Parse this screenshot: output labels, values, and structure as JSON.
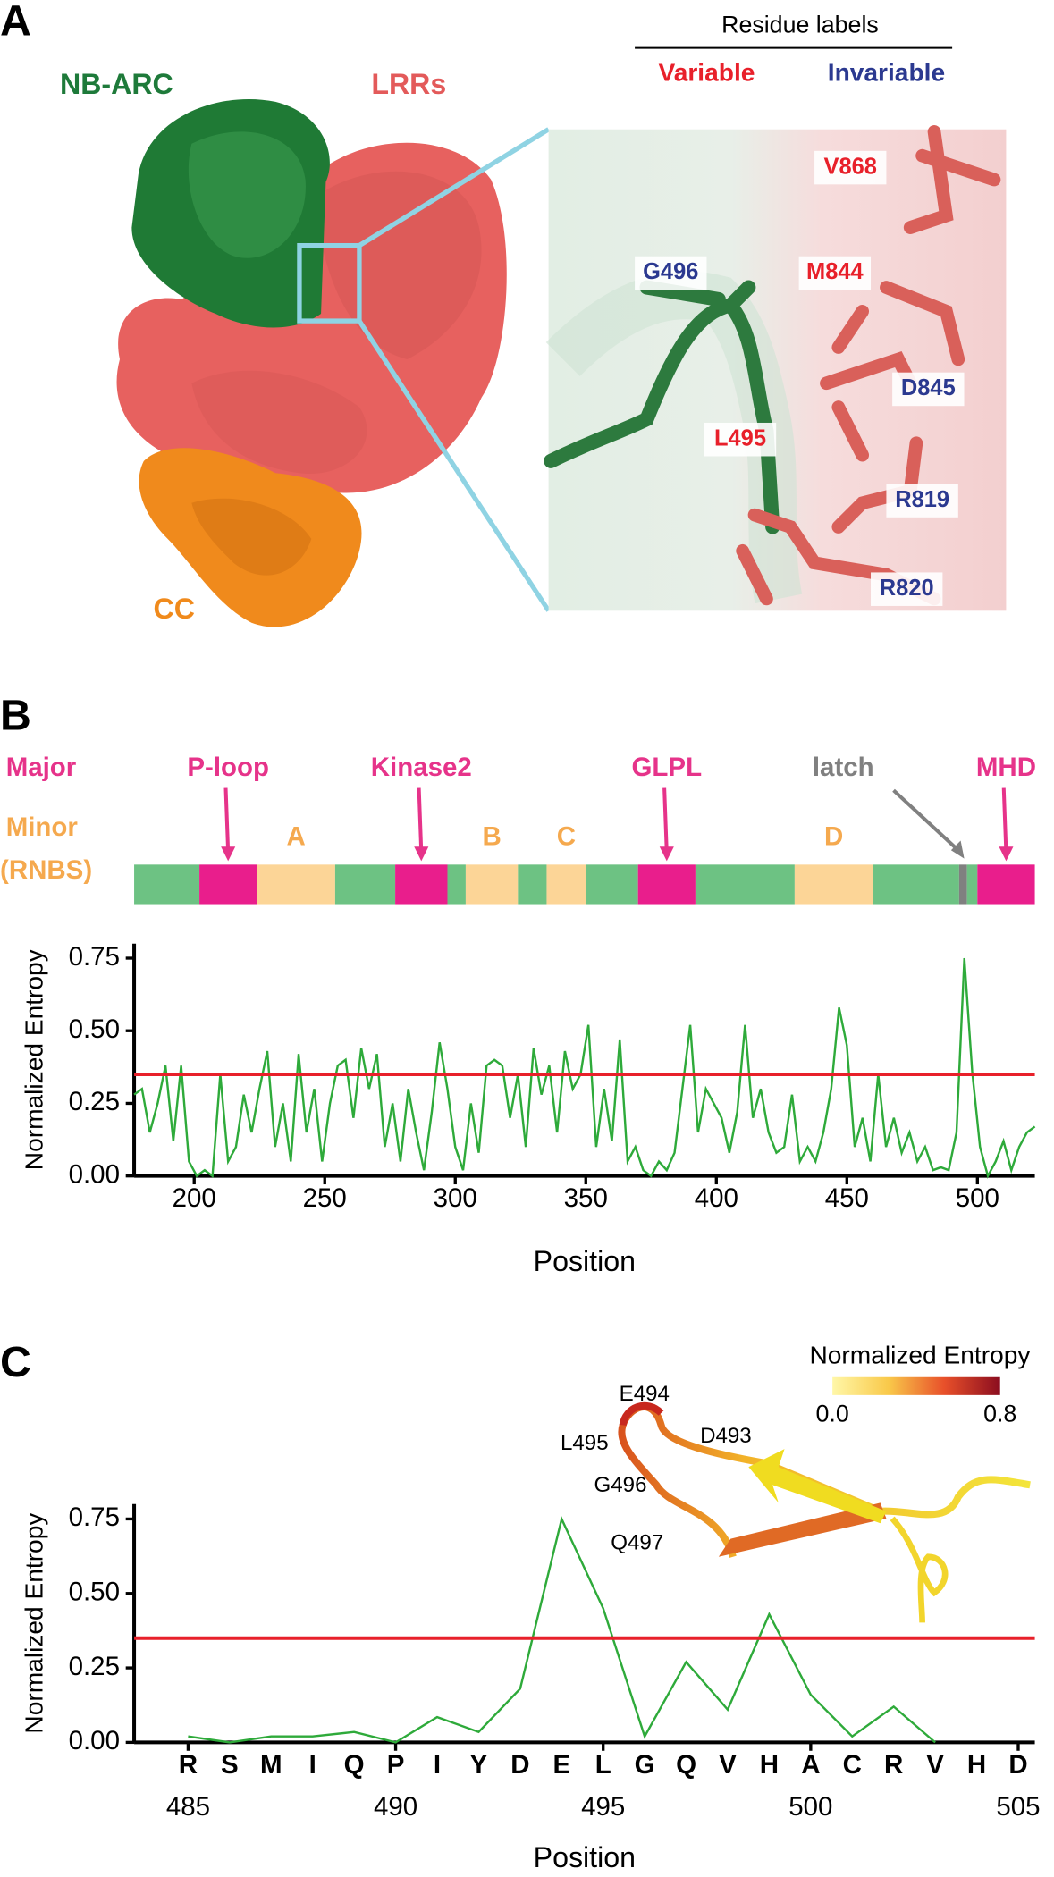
{
  "panels": {
    "a": {
      "letter": "A",
      "nb_arc": "NB-ARC",
      "lrrs": "LRRs",
      "cc": "CC",
      "residue_labels_title": "Residue labels",
      "variable": "Variable",
      "invariable": "Invariable",
      "variable_color": "#e8202a",
      "invariable_color": "#2b3990",
      "variable_residues": [
        "V868",
        "M844",
        "L495"
      ],
      "invariable_residues": [
        "G496",
        "D845",
        "R819",
        "R820"
      ]
    },
    "b": {
      "letter": "B",
      "major": "Major",
      "minor": "Minor",
      "minor_note": "(RNBS)"
    },
    "c": {
      "letter": "C",
      "inset_labels": [
        "E494",
        "L495",
        "D493",
        "G496",
        "Q497"
      ],
      "colorbar": {
        "title": "Normalized Entropy",
        "ticks": [
          {
            "value": 0,
            "label": "0.0"
          },
          {
            "value": 0.8,
            "label": "0.8"
          }
        ],
        "colors": [
          "#fff7a8",
          "#f9c94a",
          "#e8502a",
          "#8b0d1f"
        ]
      }
    }
  },
  "chart_data": [
    {
      "type": "line",
      "x_label": "Position",
      "y_label": "Normalized Entropy",
      "color": "#2eaa3a",
      "threshold": 0.35,
      "threshold_color": "#e8202a",
      "xlim": [
        177,
        522
      ],
      "ylim": [
        0,
        0.8
      ],
      "xticks": [
        200,
        250,
        300,
        350,
        400,
        450,
        500
      ],
      "yticks": [
        {
          "value": 0,
          "label": "0.00"
        },
        {
          "value": 0.25,
          "label": "0.25"
        },
        {
          "value": 0.5,
          "label": "0.50"
        },
        {
          "value": 0.75,
          "label": "0.75"
        }
      ],
      "domains": [
        {
          "start": 177,
          "end": 202,
          "color": "#6dc283"
        },
        {
          "start": 202,
          "end": 224,
          "color": "#e91e8c",
          "label": "P-loop",
          "label_color": "#e6338a",
          "arrow": "down"
        },
        {
          "start": 224,
          "end": 254,
          "color": "#fcd597",
          "label": "A",
          "label_color": "#f5a94e"
        },
        {
          "start": 254,
          "end": 277,
          "color": "#6dc283"
        },
        {
          "start": 277,
          "end": 297,
          "color": "#e91e8c",
          "label": "Kinase2",
          "label_color": "#e6338a",
          "arrow": "down"
        },
        {
          "start": 297,
          "end": 304,
          "color": "#6dc283"
        },
        {
          "start": 304,
          "end": 324,
          "color": "#fcd597",
          "label": "B",
          "label_color": "#f5a94e"
        },
        {
          "start": 324,
          "end": 335,
          "color": "#6dc283"
        },
        {
          "start": 335,
          "end": 350,
          "color": "#fcd597",
          "label": "C",
          "label_color": "#f5a94e"
        },
        {
          "start": 350,
          "end": 370,
          "color": "#6dc283"
        },
        {
          "start": 370,
          "end": 392,
          "color": "#e91e8c",
          "label": "GLPL",
          "label_color": "#e6338a",
          "arrow": "down"
        },
        {
          "start": 392,
          "end": 430,
          "color": "#6dc283"
        },
        {
          "start": 430,
          "end": 460,
          "color": "#fcd597",
          "label": "D",
          "label_color": "#f5a94e"
        },
        {
          "start": 460,
          "end": 493,
          "color": "#6dc283"
        },
        {
          "start": 493,
          "end": 496,
          "color": "#808080",
          "label": "latch",
          "label_color": "#808080",
          "arrow": "diagonal"
        },
        {
          "start": 496,
          "end": 500,
          "color": "#6dc283"
        },
        {
          "start": 500,
          "end": 522,
          "color": "#e91e8c",
          "label": "MHD",
          "label_color": "#e6338a",
          "arrow": "down"
        }
      ],
      "x": [
        177,
        180,
        183,
        186,
        189,
        192,
        195,
        198,
        201,
        204,
        207,
        210,
        213,
        216,
        219,
        222,
        225,
        228,
        231,
        234,
        237,
        240,
        243,
        246,
        249,
        252,
        255,
        258,
        261,
        264,
        267,
        270,
        273,
        276,
        279,
        282,
        285,
        288,
        291,
        294,
        297,
        300,
        303,
        306,
        309,
        312,
        315,
        318,
        321,
        324,
        327,
        330,
        333,
        336,
        339,
        342,
        345,
        348,
        351,
        354,
        357,
        360,
        363,
        366,
        369,
        372,
        375,
        378,
        381,
        384,
        387,
        390,
        393,
        396,
        399,
        402,
        405,
        408,
        411,
        414,
        417,
        420,
        423,
        426,
        429,
        432,
        435,
        438,
        441,
        444,
        447,
        450,
        453,
        456,
        459,
        462,
        465,
        468,
        471,
        474,
        477,
        480,
        483,
        486,
        489,
        492,
        495,
        498,
        501,
        504,
        507,
        510,
        513,
        516,
        519,
        522
      ],
      "values": [
        0.28,
        0.3,
        0.15,
        0.25,
        0.38,
        0.12,
        0.38,
        0.05,
        0,
        0.02,
        0,
        0.35,
        0.05,
        0.1,
        0.28,
        0.15,
        0.3,
        0.43,
        0.1,
        0.25,
        0.05,
        0.42,
        0.15,
        0.3,
        0.05,
        0.25,
        0.38,
        0.4,
        0.2,
        0.44,
        0.3,
        0.42,
        0.1,
        0.25,
        0.05,
        0.3,
        0.15,
        0.02,
        0.22,
        0.46,
        0.3,
        0.1,
        0.02,
        0.25,
        0.08,
        0.38,
        0.4,
        0.38,
        0.2,
        0.35,
        0.1,
        0.44,
        0.28,
        0.38,
        0.15,
        0.43,
        0.3,
        0.35,
        0.52,
        0.1,
        0.3,
        0.12,
        0.47,
        0.05,
        0.1,
        0.02,
        0,
        0.05,
        0.02,
        0.08,
        0.3,
        0.52,
        0.15,
        0.3,
        0.25,
        0.2,
        0.08,
        0.22,
        0.52,
        0.2,
        0.3,
        0.15,
        0.08,
        0.1,
        0.28,
        0.05,
        0.1,
        0.05,
        0.15,
        0.3,
        0.58,
        0.45,
        0.1,
        0.2,
        0.05,
        0.35,
        0.1,
        0.2,
        0.08,
        0.15,
        0.05,
        0.1,
        0.02,
        0.03,
        0.02,
        0.15,
        0.75,
        0.36,
        0.1,
        0,
        0.05,
        0.12,
        0.02,
        0.1,
        0.15,
        0.17
      ]
    },
    {
      "type": "line",
      "x_label": "Position",
      "y_label": "Normalized Entropy",
      "color": "#2eaa3a",
      "threshold": 0.35,
      "threshold_color": "#e8202a",
      "xlim": [
        483.7,
        505.4
      ],
      "ylim": [
        0,
        0.8
      ],
      "xticks": [
        485,
        490,
        495,
        500,
        505
      ],
      "yticks": [
        {
          "value": 0,
          "label": "0.00"
        },
        {
          "value": 0.25,
          "label": "0.25"
        },
        {
          "value": 0.5,
          "label": "0.50"
        },
        {
          "value": 0.75,
          "label": "0.75"
        }
      ],
      "x": [
        485,
        486,
        487,
        488,
        489,
        490,
        491,
        492,
        493,
        494,
        495,
        496,
        497,
        498,
        499,
        500,
        501,
        502,
        503,
        504,
        505
      ],
      "values": [
        0.02,
        0,
        0.02,
        0.02,
        0.035,
        0,
        0.085,
        0.035,
        0.18,
        0.75,
        0.45,
        0.02,
        0.27,
        0.11,
        0.43,
        0.16,
        0.02,
        0.12,
        0,
        null,
        null
      ],
      "residues": [
        "R",
        "S",
        "M",
        "I",
        "Q",
        "P",
        "I",
        "Y",
        "D",
        "E",
        "L",
        "G",
        "Q",
        "V",
        "H",
        "A",
        "C",
        "R",
        "V",
        "H",
        "D"
      ]
    }
  ]
}
